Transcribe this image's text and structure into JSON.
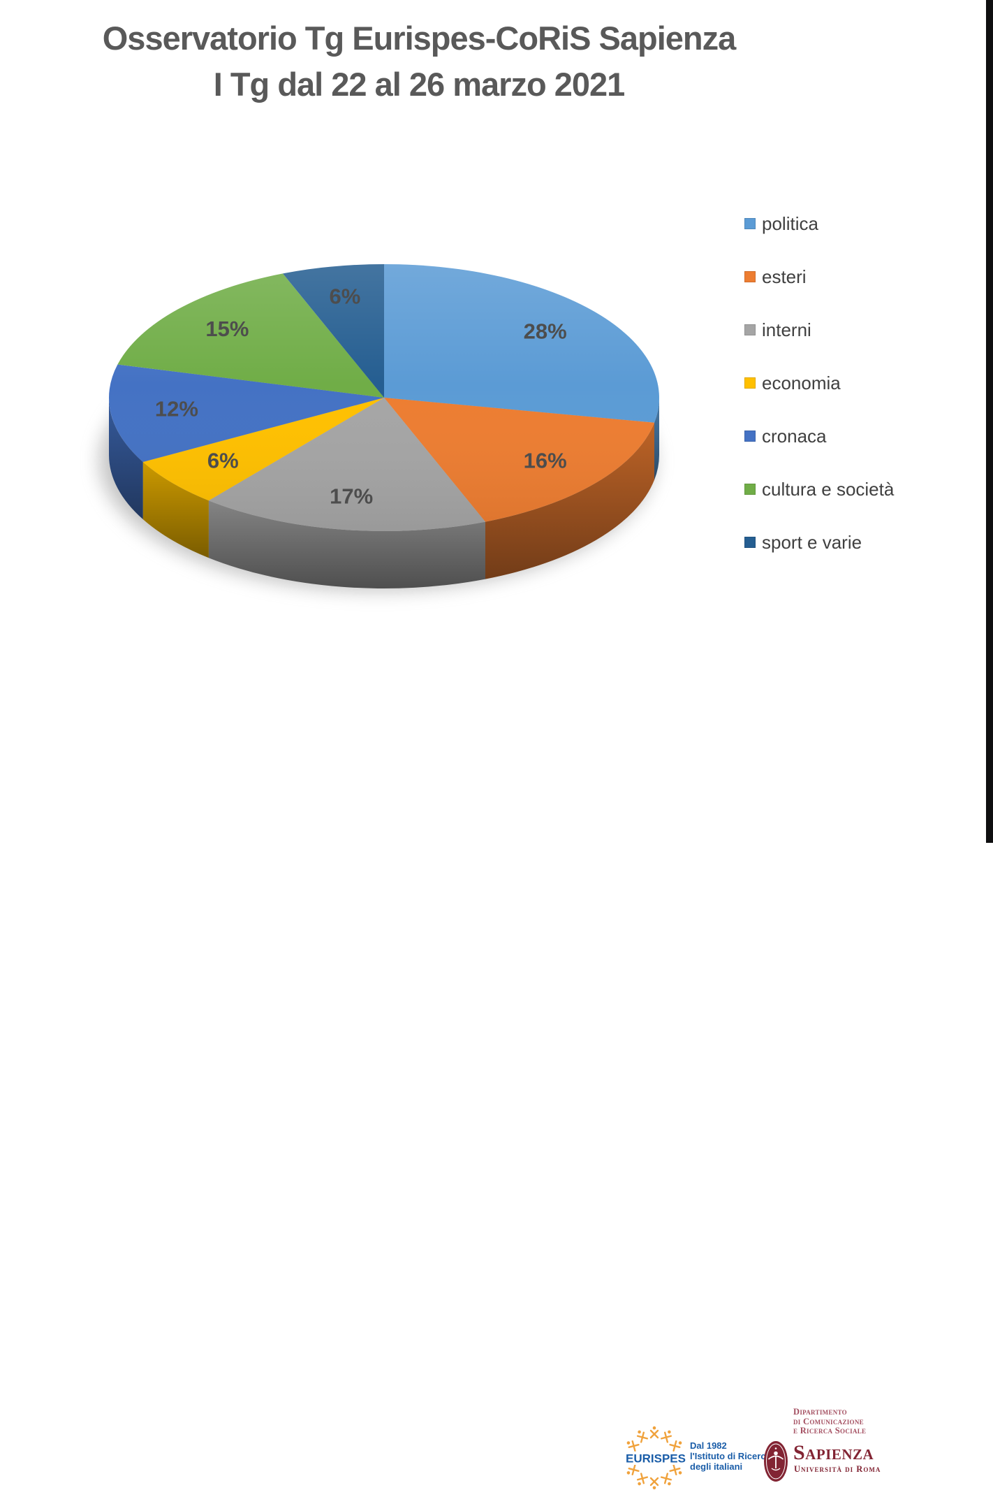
{
  "title": {
    "line1": "Osservatorio Tg Eurispes-CoRiS Sapienza",
    "line2": "I Tg dal 22 al 26 marzo 2021"
  },
  "chart_data": {
    "type": "pie",
    "style": "3d",
    "start_angle_deg": 0,
    "direction": "clockwise",
    "legend_position": "right",
    "data_label_color": "#4D4D4D",
    "items": [
      {
        "label": "politica",
        "value": 28,
        "pct_label": "28%",
        "color": "#5B9BD5"
      },
      {
        "label": "esteri",
        "value": 16,
        "pct_label": "16%",
        "color": "#ED7D31"
      },
      {
        "label": "interni",
        "value": 17,
        "pct_label": "17%",
        "color": "#A5A5A5"
      },
      {
        "label": "economia",
        "value": 6,
        "pct_label": "6%",
        "color": "#FFC000"
      },
      {
        "label": "cronaca",
        "value": 12,
        "pct_label": "12%",
        "color": "#4472C4"
      },
      {
        "label": "cultura e società",
        "value": 15,
        "pct_label": "15%",
        "color": "#70AD47"
      },
      {
        "label": "sport e varie",
        "value": 6,
        "pct_label": "6%",
        "color": "#255E91"
      }
    ]
  },
  "footer": {
    "eurispes": {
      "name": "EURISPES",
      "tagline_lines": [
        "Dal 1982",
        "l'Istituto di Ricerca",
        "degli italiani"
      ],
      "brand_blue": "#1A5DA8",
      "brand_orange": "#F0A23C"
    },
    "sapienza": {
      "department_lines": [
        "Dipartimento",
        "di Comunicazione",
        "e Ricerca Sociale"
      ],
      "name": "Sapienza",
      "subtitle": "Università di Roma",
      "brand_maroon": "#822433",
      "department_color": "#A34D5F"
    }
  }
}
